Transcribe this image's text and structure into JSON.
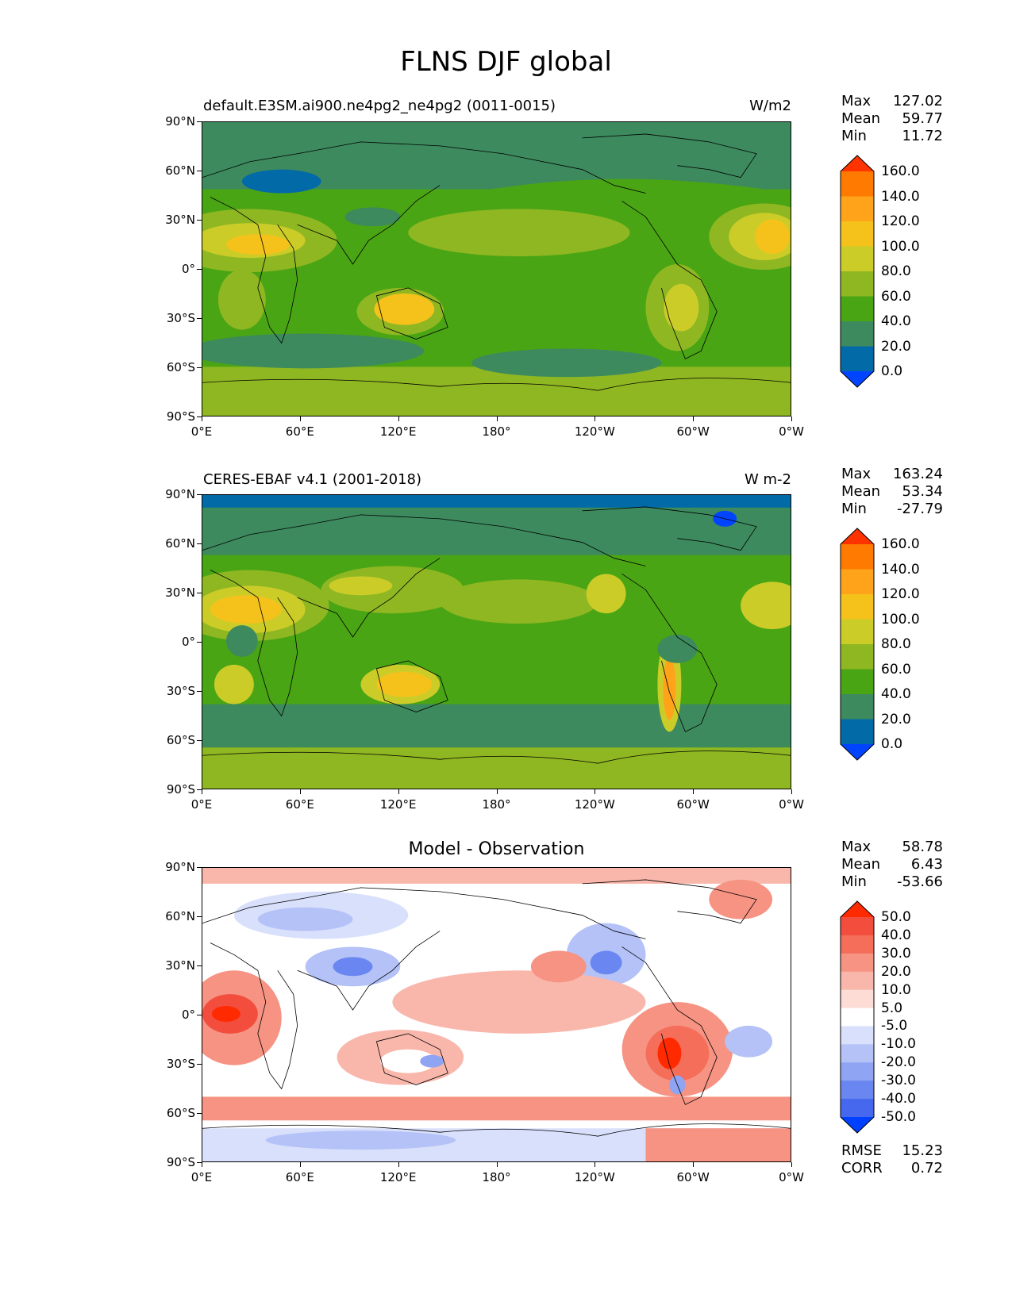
{
  "title": "FLNS DJF global",
  "lat_ticks": [
    "90°N",
    "60°N",
    "30°N",
    "0°",
    "30°S",
    "60°S",
    "90°S"
  ],
  "lon_ticks": [
    "0°E",
    "60°E",
    "120°E",
    "180°",
    "120°W",
    "60°W",
    "0°W"
  ],
  "panels": [
    {
      "title": "default.E3SM.ai900.ne4pg2_ne4pg2 (0011-0015)",
      "units": "W/m2",
      "stats": [
        {
          "label": "Max",
          "value": "127.02"
        },
        {
          "label": "Mean",
          "value": "59.77"
        },
        {
          "label": "Min",
          "value": "11.72"
        }
      ],
      "colorbar": {
        "labels": [
          "160.0",
          "140.0",
          "120.0",
          "100.0",
          "80.0",
          "60.0",
          "40.0",
          "20.0",
          "0.0"
        ],
        "colors": [
          "#ff3300",
          "#ff7a00",
          "#ffa31a",
          "#f5c21b",
          "#cccc29",
          "#8fb722",
          "#4aa514",
          "#3d8a5e",
          "#036aa8",
          "#0044ff"
        ]
      }
    },
    {
      "title": "CERES-EBAF v4.1 (2001-2018)",
      "units": "W m-2",
      "stats": [
        {
          "label": "Max",
          "value": "163.24"
        },
        {
          "label": "Mean",
          "value": "53.34"
        },
        {
          "label": "Min",
          "value": "-27.79"
        }
      ],
      "colorbar": {
        "labels": [
          "160.0",
          "140.0",
          "120.0",
          "100.0",
          "80.0",
          "60.0",
          "40.0",
          "20.0",
          "0.0"
        ],
        "colors": [
          "#ff3300",
          "#ff7a00",
          "#ffa31a",
          "#f5c21b",
          "#cccc29",
          "#8fb722",
          "#4aa514",
          "#3d8a5e",
          "#036aa8",
          "#0044ff"
        ]
      }
    },
    {
      "title": "Model - Observation",
      "units": "",
      "stats": [
        {
          "label": "Max",
          "value": "58.78"
        },
        {
          "label": "Mean",
          "value": "6.43"
        },
        {
          "label": "Min",
          "value": "-53.66"
        }
      ],
      "extra_stats": [
        {
          "label": "RMSE",
          "value": "15.23"
        },
        {
          "label": "CORR",
          "value": "0.72"
        }
      ],
      "colorbar": {
        "labels": [
          "50.0",
          "40.0",
          "30.0",
          "20.0",
          "10.0",
          "5.0",
          "-5.0",
          "-10.0",
          "-20.0",
          "-30.0",
          "-40.0",
          "-50.0"
        ],
        "colors": [
          "#ff2a00",
          "#f24d3d",
          "#f46e5a",
          "#f69383",
          "#f9b7ab",
          "#fddcd6",
          "#ffffff",
          "#d9e0fb",
          "#b4c2f7",
          "#8fa4f3",
          "#6a86f0",
          "#4568ef",
          "#0040ff"
        ]
      }
    }
  ]
}
